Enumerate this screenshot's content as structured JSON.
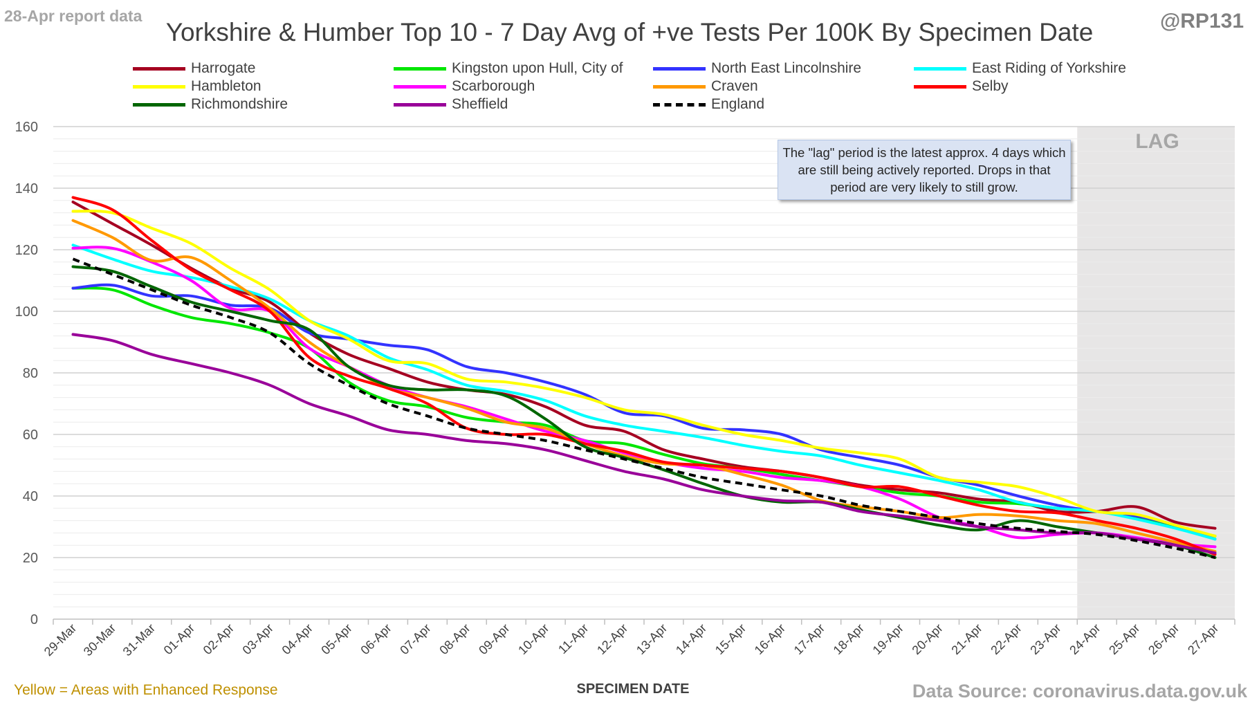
{
  "header": {
    "report_note": "28-Apr report data",
    "handle": "@RP131",
    "title": "Yorkshire & Humber Top 10 - 7 Day Avg of +ve Tests Per 100K By Specimen Date"
  },
  "footer": {
    "enhanced_note": "Yellow = Areas with Enhanced Response",
    "source": "Data Source: coronavirus.data.gov.uk"
  },
  "lag": {
    "label": "LAG",
    "note": "The \"lag\" period is the latest approx. 4 days which are still being actively reported. Drops in that period are very likely to still grow.",
    "start_category": "24-Apr",
    "end_category": "27-Apr",
    "shade_color": "#e7e6e6"
  },
  "chart_data": {
    "type": "line",
    "title": "Yorkshire & Humber Top 10 - 7 Day Avg of +ve Tests Per 100K By Specimen Date",
    "xlabel": "SPECIMEN DATE",
    "ylabel": "",
    "ylim": [
      0,
      160
    ],
    "yticks": [
      0,
      20,
      40,
      60,
      80,
      100,
      120,
      140,
      160
    ],
    "grid": true,
    "legend_position": "top",
    "categories": [
      "29-Mar",
      "30-Mar",
      "31-Mar",
      "01-Apr",
      "02-Apr",
      "03-Apr",
      "04-Apr",
      "05-Apr",
      "06-Apr",
      "07-Apr",
      "08-Apr",
      "09-Apr",
      "10-Apr",
      "11-Apr",
      "12-Apr",
      "13-Apr",
      "14-Apr",
      "15-Apr",
      "16-Apr",
      "17-Apr",
      "18-Apr",
      "19-Apr",
      "20-Apr",
      "21-Apr",
      "22-Apr",
      "23-Apr",
      "24-Apr",
      "25-Apr",
      "26-Apr",
      "27-Apr"
    ],
    "series": [
      {
        "name": "Harrogate",
        "color": "#a50021",
        "dashed": false,
        "values": [
          135.5,
          128.5,
          121.5,
          114,
          107.5,
          103,
          93,
          86,
          81.5,
          77,
          74.5,
          73,
          69,
          63,
          61,
          55,
          52,
          49.5,
          48,
          46,
          43.5,
          42,
          41,
          39,
          38,
          35,
          35,
          36.5,
          31.5,
          29.5
        ]
      },
      {
        "name": "Kingston upon Hull, City of",
        "color": "#00e600",
        "dashed": false,
        "values": [
          107.5,
          107,
          102,
          98,
          96,
          93,
          88,
          77,
          71,
          69,
          65.5,
          64,
          63,
          58,
          57,
          53.5,
          50.5,
          49,
          47,
          45,
          43,
          41,
          40,
          38,
          37.5,
          36,
          35,
          33,
          30,
          27
        ]
      },
      {
        "name": "North East Lincolnshire",
        "color": "#3333ff",
        "dashed": false,
        "values": [
          107.5,
          108.5,
          105,
          105,
          102,
          101,
          93,
          91,
          89,
          87.5,
          82,
          80,
          77,
          73,
          67,
          66,
          62,
          61.5,
          60,
          55,
          52.5,
          50,
          46,
          43.5,
          40,
          37,
          35,
          33.5,
          30.5,
          26
        ]
      },
      {
        "name": "East Riding of Yorkshire",
        "color": "#00ffff",
        "dashed": false,
        "values": [
          121.5,
          117,
          113,
          111,
          108,
          104,
          97,
          92,
          85,
          81,
          76,
          74,
          71,
          66,
          63,
          61,
          59,
          56.5,
          54.5,
          53,
          50,
          47.5,
          45,
          42,
          38,
          36,
          35,
          32.5,
          29.5,
          26
        ]
      },
      {
        "name": "Hambleton",
        "color": "#ffff00",
        "dashed": false,
        "values": [
          132.5,
          132,
          127,
          122,
          114,
          107,
          97,
          91,
          84,
          83,
          78,
          77,
          75,
          72,
          68,
          66.5,
          63,
          60,
          58,
          55.5,
          54,
          52,
          46,
          44.5,
          43,
          39.5,
          35,
          34,
          30.5,
          27
        ]
      },
      {
        "name": "Scarborough",
        "color": "#ff00ff",
        "dashed": false,
        "values": [
          120.5,
          120.5,
          116,
          110,
          101,
          100,
          88,
          82,
          76,
          72,
          69,
          65,
          61,
          58,
          54,
          51,
          49,
          48,
          46,
          45,
          43,
          39,
          33,
          30,
          26.5,
          27.5,
          28,
          26.5,
          24.5,
          23.5
        ]
      },
      {
        "name": "Craven",
        "color": "#ff9900",
        "dashed": false,
        "values": [
          129.5,
          124,
          116.5,
          117.5,
          110,
          101,
          90,
          82,
          75,
          72,
          68.5,
          64,
          62,
          57,
          53,
          50.5,
          50,
          47,
          43.5,
          38.5,
          36.5,
          35,
          33,
          34,
          33.5,
          32,
          31,
          28,
          25,
          22
        ]
      },
      {
        "name": "Selby",
        "color": "#ff0000",
        "dashed": false,
        "values": [
          137,
          133,
          123,
          113.5,
          107,
          100,
          85,
          79,
          75,
          70,
          62,
          60,
          60,
          57,
          54.5,
          51,
          50,
          49,
          48,
          46,
          43,
          43,
          40,
          37,
          35,
          34.5,
          32,
          29.5,
          26,
          21
        ]
      },
      {
        "name": "Richmondshire",
        "color": "#006600",
        "dashed": false,
        "values": [
          114.5,
          113,
          108,
          103,
          100,
          97,
          94,
          82,
          76,
          74.5,
          74.5,
          72.5,
          65,
          56,
          52.5,
          48.5,
          44,
          40,
          38,
          38,
          35.5,
          33,
          30.5,
          29,
          32,
          30,
          28,
          26,
          24,
          20
        ]
      },
      {
        "name": "Sheffield",
        "color": "#990099",
        "dashed": false,
        "values": [
          92.5,
          90.5,
          86,
          83,
          80,
          76,
          70,
          66,
          61.5,
          60,
          58,
          57,
          55,
          51.5,
          48,
          45.5,
          42,
          40,
          38.5,
          38,
          35,
          33.5,
          32,
          30,
          29,
          28,
          28,
          26,
          24,
          21.5
        ]
      },
      {
        "name": "England",
        "color": "#000000",
        "dashed": true,
        "values": [
          117,
          112,
          107,
          102,
          98,
          93,
          83,
          76,
          70,
          66,
          62,
          60,
          58,
          55,
          52,
          49,
          46,
          44,
          42,
          40,
          37,
          35,
          33,
          31,
          29.5,
          28.5,
          27.5,
          25.5,
          23,
          20
        ]
      }
    ]
  }
}
